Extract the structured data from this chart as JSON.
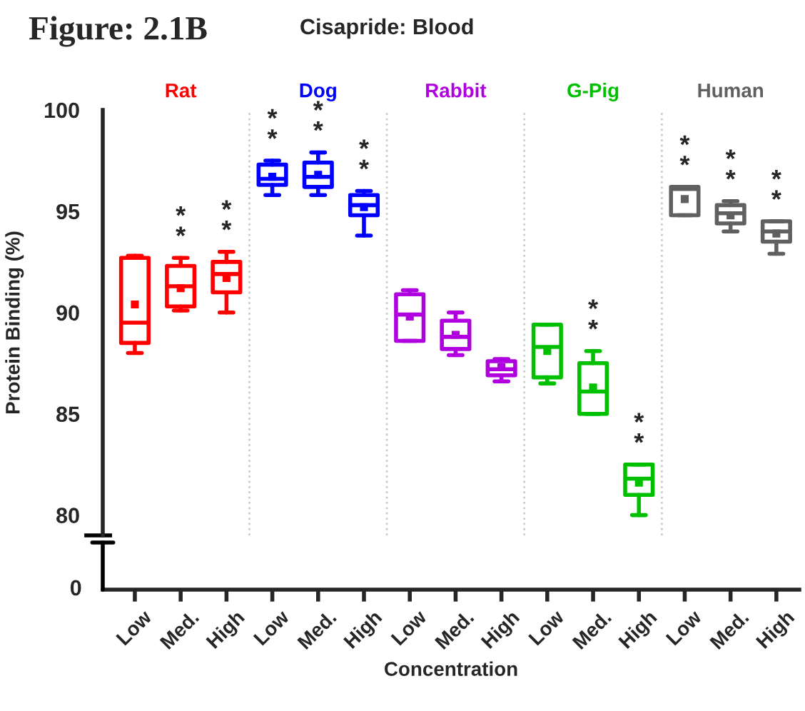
{
  "chart_data": [
    {
      "type": "box",
      "title": "Figure: 2.1B",
      "subtitle": "Cisapride: Blood",
      "ylabel": "Protein Binding (%)",
      "categories": [
        "Low",
        "Med.",
        "High",
        "Low",
        "Med.",
        "High",
        "Low",
        "Med.",
        "High",
        "Low",
        "Med.",
        "High",
        "Low",
        "Med.",
        "High"
      ],
      "xlabel": "Concentration",
      "annotations": [
        "0"
      ],
      "ylim": [
        79,
        100
      ],
      "yticks": [
        80,
        85,
        90,
        95,
        100
      ],
      "series": [
        {
          "name": "Rat",
          "color": "#ff0000",
          "boxes": [
            {
              "low": 88.0,
              "q1": 88.5,
              "median": 89.5,
              "q3": 92.7,
              "high": 92.8,
              "mean": 90.4
            },
            {
              "low": 90.1,
              "q1": 90.3,
              "median": 91.3,
              "q3": 92.3,
              "high": 92.7,
              "mean": 91.2
            },
            {
              "low": 90.0,
              "q1": 91.0,
              "median": 91.9,
              "q3": 92.5,
              "high": 93.0,
              "mean": 91.7
            },
            null,
            null,
            null,
            null,
            null,
            null,
            null,
            null,
            null,
            null,
            null,
            null
          ],
          "value_labels": [
            null,
            "**",
            "**",
            null,
            null,
            null,
            null,
            null,
            null,
            null,
            null,
            null,
            null,
            null,
            null
          ]
        },
        {
          "name": "Dog",
          "color": "#0000ff",
          "boxes": [
            null,
            null,
            null,
            {
              "low": 95.8,
              "q1": 96.3,
              "median": 96.6,
              "q3": 97.3,
              "high": 97.5,
              "mean": 96.7
            },
            {
              "low": 95.8,
              "q1": 96.2,
              "median": 96.7,
              "q3": 97.4,
              "high": 97.9,
              "mean": 96.8
            },
            {
              "low": 93.8,
              "q1": 94.8,
              "median": 95.3,
              "q3": 95.8,
              "high": 96.0,
              "mean": 95.2
            },
            null,
            null,
            null,
            null,
            null,
            null,
            null,
            null,
            null
          ],
          "value_labels": [
            null,
            null,
            null,
            "**",
            "**",
            "**",
            null,
            null,
            null,
            null,
            null,
            null,
            null,
            null,
            null
          ]
        },
        {
          "name": "Rabbit",
          "color": "#b000e0",
          "boxes": [
            null,
            null,
            null,
            null,
            null,
            null,
            {
              "low": 88.6,
              "q1": 88.6,
              "median": 89.9,
              "q3": 90.9,
              "high": 91.1,
              "mean": 89.8
            },
            {
              "low": 87.9,
              "q1": 88.2,
              "median": 88.8,
              "q3": 89.6,
              "high": 90.0,
              "mean": 88.9
            },
            {
              "low": 86.6,
              "q1": 86.9,
              "median": 87.2,
              "q3": 87.6,
              "high": 87.7,
              "mean": 87.3
            },
            null,
            null,
            null,
            null,
            null,
            null
          ],
          "value_labels": [
            null,
            null,
            null,
            null,
            null,
            null,
            null,
            null,
            null,
            null,
            null,
            null,
            null,
            null,
            null
          ]
        },
        {
          "name": "G-Pig",
          "color": "#00c000",
          "boxes": [
            null,
            null,
            null,
            null,
            null,
            null,
            null,
            null,
            null,
            {
              "low": 86.5,
              "q1": 86.8,
              "median": 88.3,
              "q3": 89.4,
              "high": 89.4,
              "mean": 88.1
            },
            {
              "low": 85.0,
              "q1": 85.0,
              "median": 86.1,
              "q3": 87.5,
              "high": 88.1,
              "mean": 86.3
            },
            {
              "low": 80.0,
              "q1": 81.0,
              "median": 81.8,
              "q3": 82.5,
              "high": 82.5,
              "mean": 81.6
            },
            null,
            null,
            null
          ],
          "value_labels": [
            null,
            null,
            null,
            null,
            null,
            null,
            null,
            null,
            null,
            null,
            "**",
            "**",
            null,
            null,
            null
          ]
        },
        {
          "name": "Human",
          "color": "#606060",
          "boxes": [
            null,
            null,
            null,
            null,
            null,
            null,
            null,
            null,
            null,
            null,
            null,
            null,
            {
              "low": 94.8,
              "q1": 94.8,
              "median": 96.1,
              "q3": 96.2,
              "high": 96.2,
              "mean": 95.6
            },
            {
              "low": 94.0,
              "q1": 94.4,
              "median": 94.9,
              "q3": 95.3,
              "high": 95.5,
              "mean": 94.8
            },
            {
              "low": 92.9,
              "q1": 93.5,
              "median": 94.0,
              "q3": 94.5,
              "high": 94.5,
              "mean": 93.9
            }
          ],
          "value_labels": [
            null,
            null,
            null,
            null,
            null,
            null,
            null,
            null,
            null,
            null,
            null,
            null,
            "**",
            "**",
            "**"
          ]
        }
      ]
    }
  ]
}
